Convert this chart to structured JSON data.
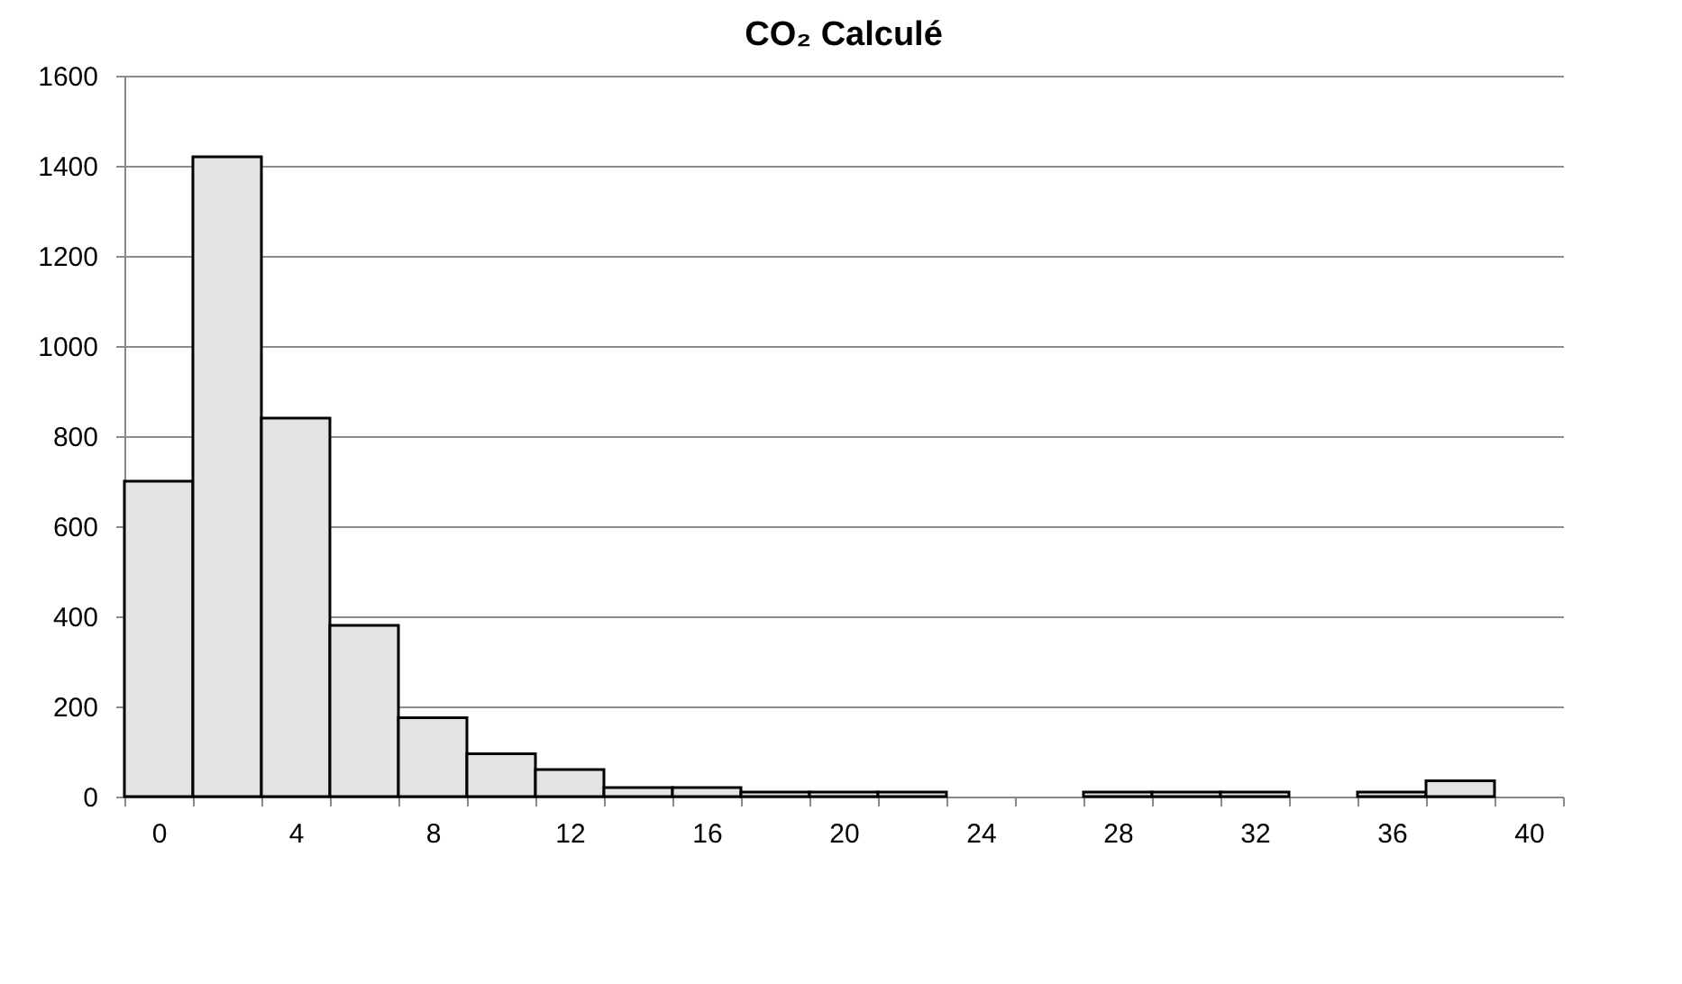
{
  "chart_data": {
    "type": "bar",
    "title": "CO₂ Calculé",
    "categories": [
      "0",
      null,
      "4",
      null,
      "8",
      null,
      "12",
      null,
      "16",
      null,
      "20",
      null,
      "24",
      null,
      "28",
      null,
      "32",
      null,
      "36",
      null,
      "40"
    ],
    "values": [
      700,
      1420,
      840,
      380,
      175,
      95,
      60,
      20,
      20,
      10,
      10,
      10,
      0,
      0,
      10,
      10,
      10,
      0,
      10,
      35,
      0
    ],
    "color": "#e3e3e3",
    "ylim": [
      0,
      1600
    ],
    "yticks": [
      0,
      200,
      400,
      600,
      800,
      1000,
      1200,
      1400,
      1600
    ],
    "grid": "y"
  }
}
